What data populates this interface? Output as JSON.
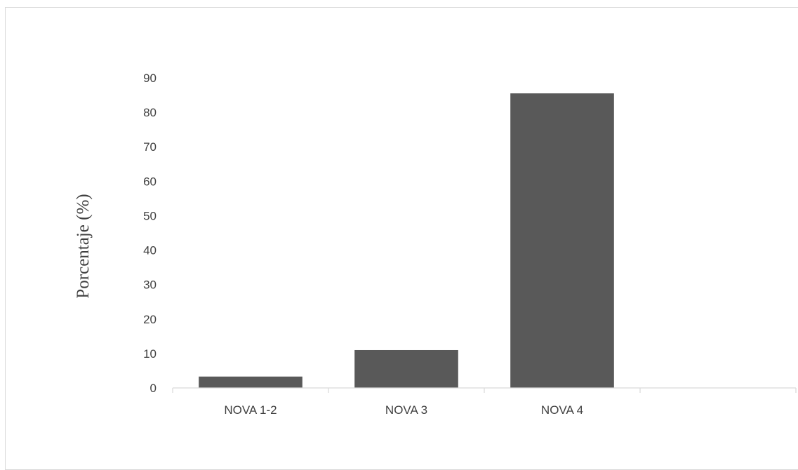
{
  "chart_data": {
    "type": "bar",
    "categories": [
      "NOVA 1-2",
      "NOVA 3",
      "NOVA 4",
      ""
    ],
    "values": [
      3.3,
      11.0,
      85.5,
      null
    ],
    "title": "",
    "xlabel": "",
    "ylabel": "Porcentaje (%)",
    "ylim": [
      0,
      90
    ],
    "yticks": [
      0,
      10,
      20,
      30,
      40,
      50,
      60,
      70,
      80,
      90
    ],
    "grid": false,
    "legend": "none",
    "bar_color": "#595959",
    "axis_color": "#d9d9d9",
    "text_color": "#404040"
  }
}
